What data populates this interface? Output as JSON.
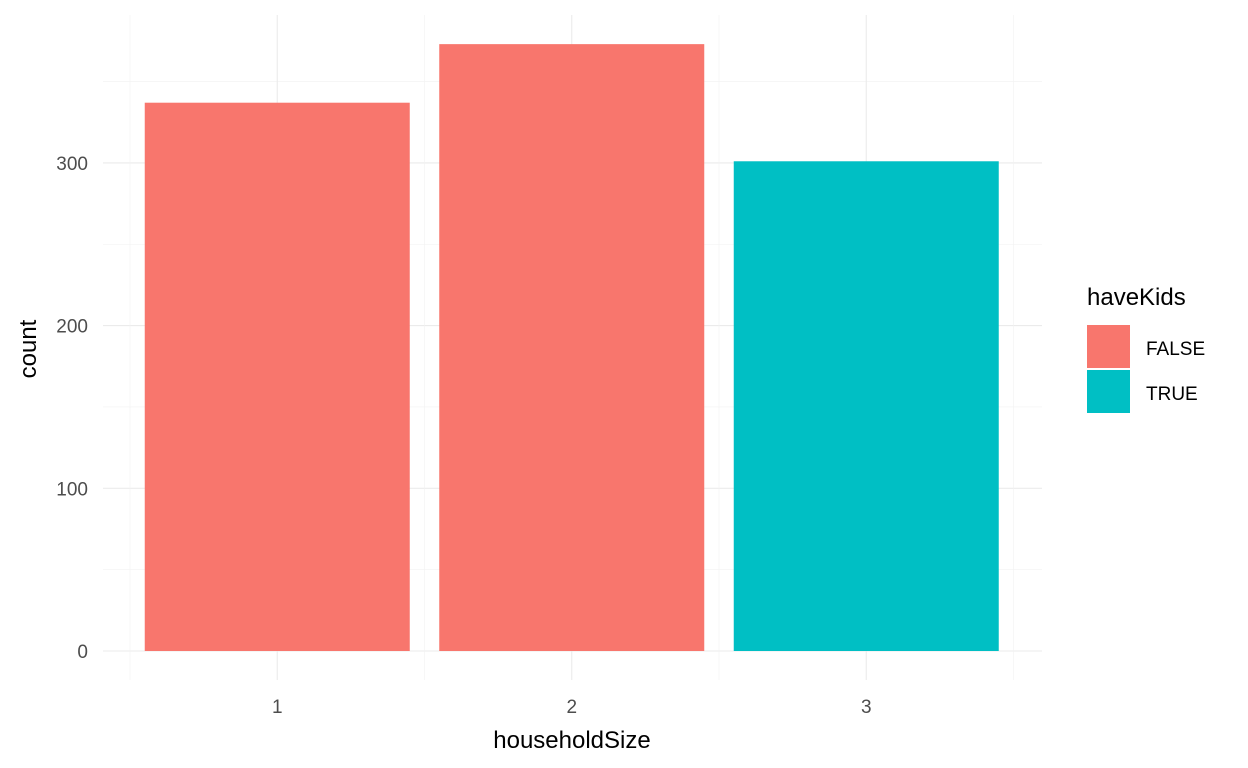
{
  "chart_data": {
    "type": "bar",
    "xlabel": "householdSize",
    "ylabel": "count",
    "categories": [
      "1",
      "2",
      "3"
    ],
    "values": [
      337,
      373,
      301
    ],
    "bar_fill_groups": [
      "FALSE",
      "FALSE",
      "TRUE"
    ],
    "ylim": [
      0,
      373
    ],
    "y_ticks": [
      0,
      100,
      200,
      300
    ],
    "y_tick_labels": [
      "0",
      "100",
      "200",
      "300"
    ],
    "grid": true,
    "legend": {
      "title": "haveKids",
      "position": "right",
      "items": [
        {
          "label": "FALSE",
          "color": "#F8766D"
        },
        {
          "label": "TRUE",
          "color": "#00BFC4"
        }
      ]
    },
    "colors": {
      "FALSE": "#F8766D",
      "TRUE": "#00BFC4"
    }
  }
}
